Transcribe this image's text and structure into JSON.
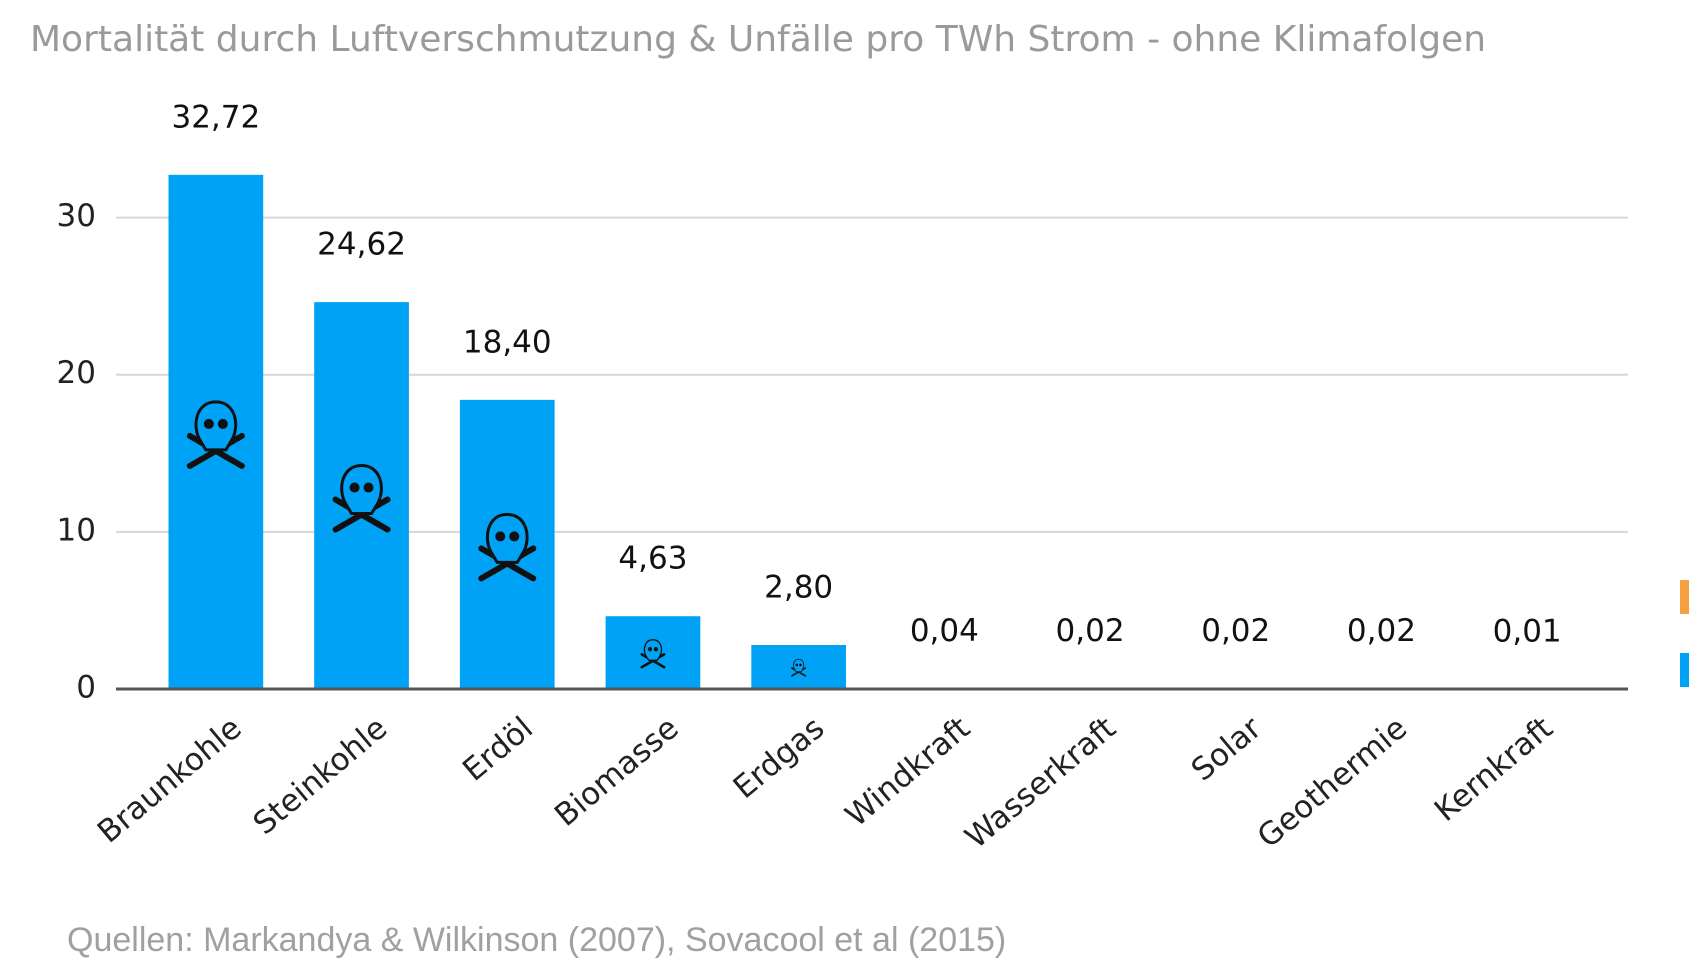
{
  "chart_data": {
    "type": "bar",
    "title": "Mortalität durch Luftverschmutzung & Unfälle pro TWh Strom - ohne Klimafolgen",
    "source": "Quellen: Markandya & Wilkinson (2007), Sovacool et al (2015)",
    "categories": [
      "Braunkohle",
      "Steinkohle",
      "Erdöl",
      "Biomasse",
      "Erdgas",
      "Windkraft",
      "Wasserkraft",
      "Solar",
      "Geothermie",
      "Kernkraft"
    ],
    "values": [
      32.72,
      24.62,
      18.4,
      4.63,
      2.8,
      0.04,
      0.02,
      0.02,
      0.02,
      0.01
    ],
    "value_labels": [
      "32,72",
      "24,62",
      "18,40",
      "4,63",
      "2,80",
      "0,04",
      "0,02",
      "0,02",
      "0,02",
      "0,01"
    ],
    "color": "#00a2f5",
    "ylim": [
      0,
      35
    ],
    "yticks": [
      0,
      10,
      20,
      30
    ],
    "grid": true
  }
}
